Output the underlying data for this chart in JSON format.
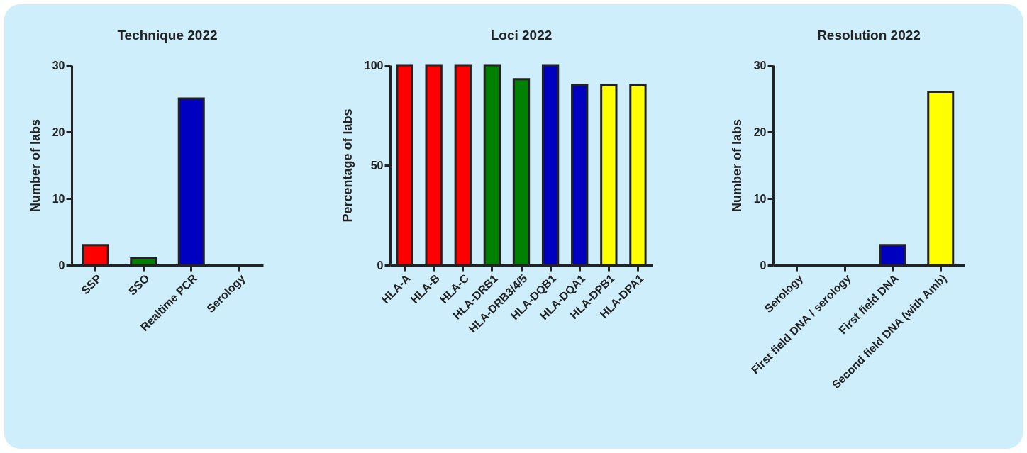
{
  "chart_data": [
    {
      "type": "bar",
      "title": "Technique 2022",
      "ylabel": "Number of labs",
      "categories": [
        "SSP",
        "SSO",
        "Realtime PCR",
        "Serology"
      ],
      "values": [
        3,
        1,
        25,
        0
      ],
      "colors": [
        "#ff0000",
        "#008000",
        "#0000c0",
        "#ffff00"
      ],
      "ylim": [
        0,
        30
      ],
      "yticks": [
        0,
        10,
        20,
        30
      ]
    },
    {
      "type": "bar",
      "title": "Loci 2022",
      "ylabel": "Percentage of labs",
      "categories": [
        "HLA-A",
        "HLA-B",
        "HLA-C",
        "HLA-DRB1",
        "HLA-DRB3/4/5",
        "HLA-DQB1",
        "HLA-DQA1",
        "HLA-DPB1",
        "HLA-DPA1"
      ],
      "values": [
        100,
        100,
        100,
        100,
        93,
        100,
        90,
        90,
        90
      ],
      "colors": [
        "#ff0000",
        "#ff0000",
        "#ff0000",
        "#008000",
        "#008000",
        "#0000c0",
        "#0000c0",
        "#ffff00",
        "#ffff00"
      ],
      "ylim": [
        0,
        100
      ],
      "yticks": [
        0,
        50,
        100
      ]
    },
    {
      "type": "bar",
      "title": "Resolution 2022",
      "ylabel": "Number of labs",
      "categories": [
        "Serology",
        "First field DNA / serology",
        "First field DNA",
        "Second field DNA (with Amb)"
      ],
      "values": [
        0,
        0,
        3,
        26
      ],
      "colors": [
        "#ff0000",
        "#008000",
        "#0000c0",
        "#ffff00"
      ],
      "ylim": [
        0,
        30
      ],
      "yticks": [
        0,
        10,
        20,
        30
      ]
    }
  ]
}
